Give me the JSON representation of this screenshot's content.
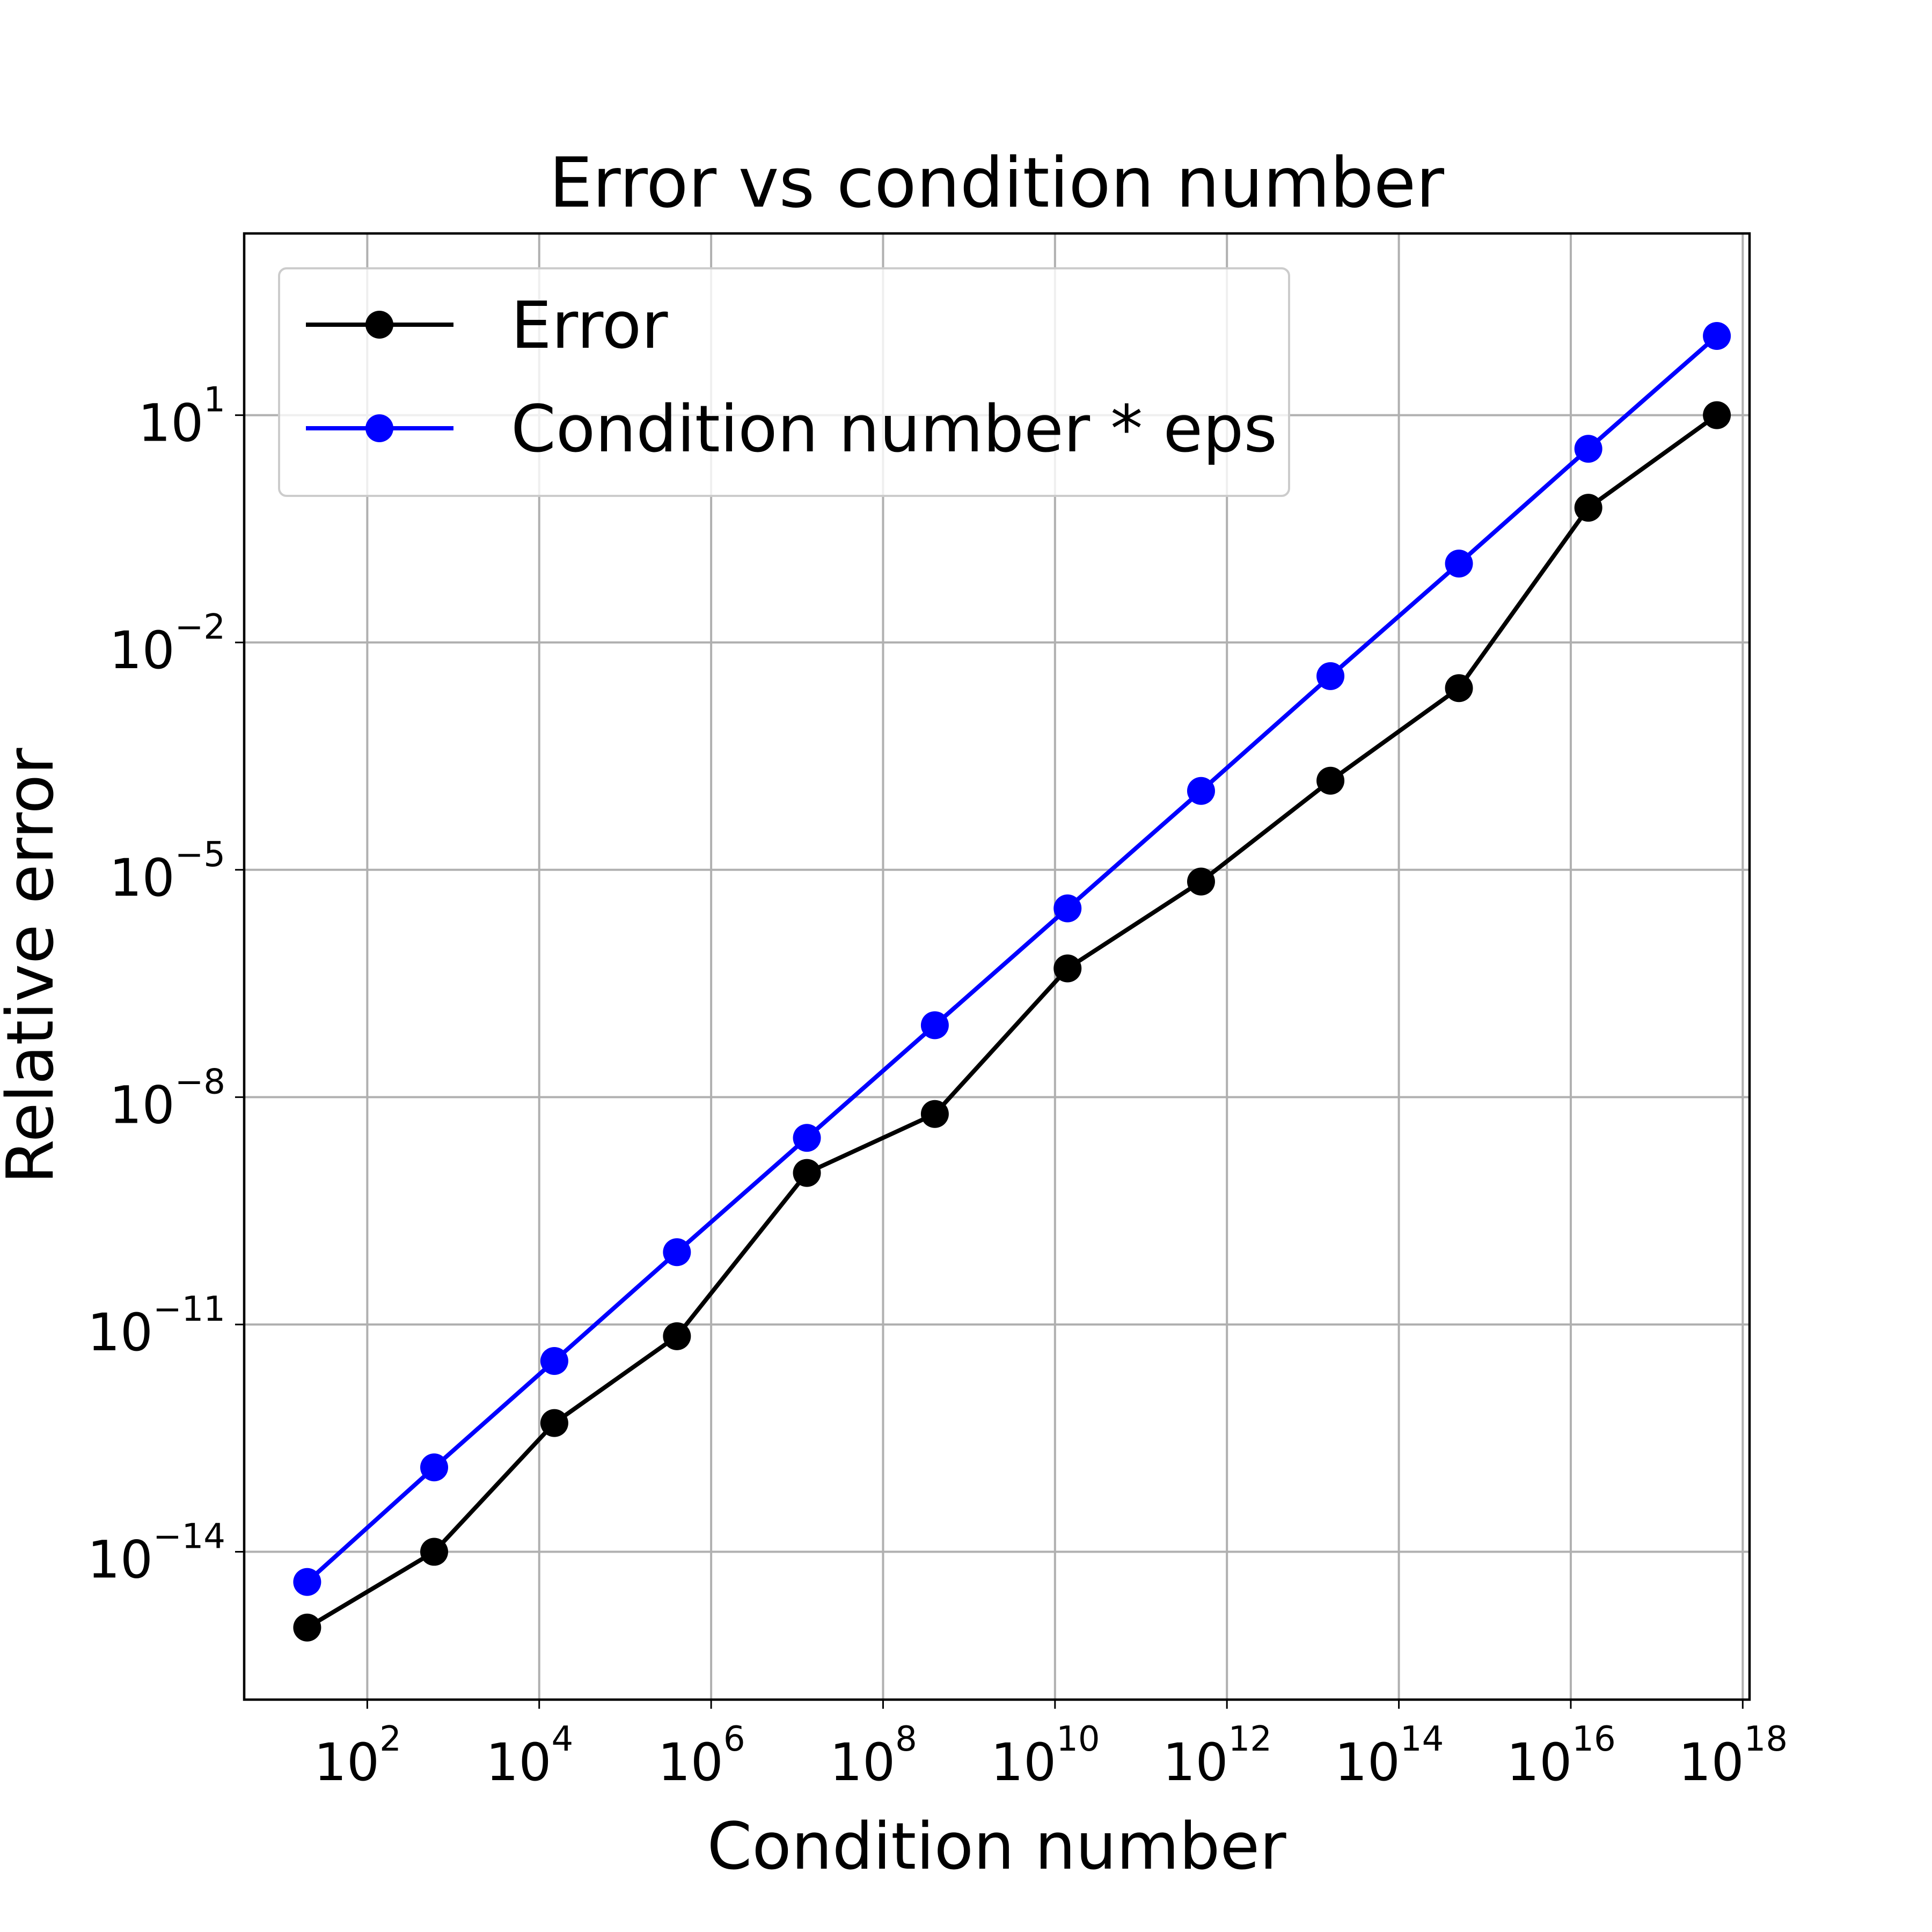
{
  "chart_data": {
    "type": "line",
    "title": "Error vs condition number",
    "xlabel": "Condition number",
    "ylabel": "Relative error",
    "xscale": "log",
    "yscale": "log",
    "xlim": [
      3.7,
      1.2e+18
    ],
    "ylim": [
      1.12e-16,
      2500.0
    ],
    "grid": true,
    "legend_position": "upper-left",
    "x_ticks": [
      {
        "value": 100.0,
        "base": "10",
        "exp": "2"
      },
      {
        "value": 10000.0,
        "base": "10",
        "exp": "4"
      },
      {
        "value": 1000000.0,
        "base": "10",
        "exp": "6"
      },
      {
        "value": 100000000.0,
        "base": "10",
        "exp": "8"
      },
      {
        "value": 10000000000.0,
        "base": "10",
        "exp": "10"
      },
      {
        "value": 1000000000000.0,
        "base": "10",
        "exp": "12"
      },
      {
        "value": 100000000000000.0,
        "base": "10",
        "exp": "14"
      },
      {
        "value": 1e+16,
        "base": "10",
        "exp": "16"
      },
      {
        "value": 1e+18,
        "base": "10",
        "exp": "18"
      }
    ],
    "y_ticks": [
      {
        "value": 1e-14,
        "base": "10",
        "exp": "−14"
      },
      {
        "value": 1e-11,
        "base": "10",
        "exp": "−11"
      },
      {
        "value": 1e-08,
        "base": "10",
        "exp": "−8"
      },
      {
        "value": 1e-05,
        "base": "10",
        "exp": "−5"
      },
      {
        "value": 0.01,
        "base": "10",
        "exp": "−2"
      },
      {
        "value": 10.0,
        "base": "10",
        "exp": "1"
      }
    ],
    "x": [
      20,
      600,
      15000,
      400000,
      13000000.0,
      400000000.0,
      14000000000.0,
      500000000000.0,
      16000000000000.0,
      500000000000000.0,
      1.6e+16,
      5e+17
    ],
    "series": [
      {
        "name": "Error",
        "color": "#000000",
        "values": [
          1e-15,
          1e-14,
          5e-13,
          7e-12,
          1e-09,
          6e-09,
          5e-07,
          7e-06,
          0.00015,
          0.0025,
          0.6,
          10
        ]
      },
      {
        "name": "Condition number * eps",
        "color": "#0000ff",
        "values": [
          4e-15,
          1.3e-13,
          3.3e-12,
          9e-11,
          2.9e-09,
          8.9e-08,
          3.1e-06,
          0.00011,
          0.0036,
          0.11,
          3.6,
          111
        ]
      }
    ]
  }
}
